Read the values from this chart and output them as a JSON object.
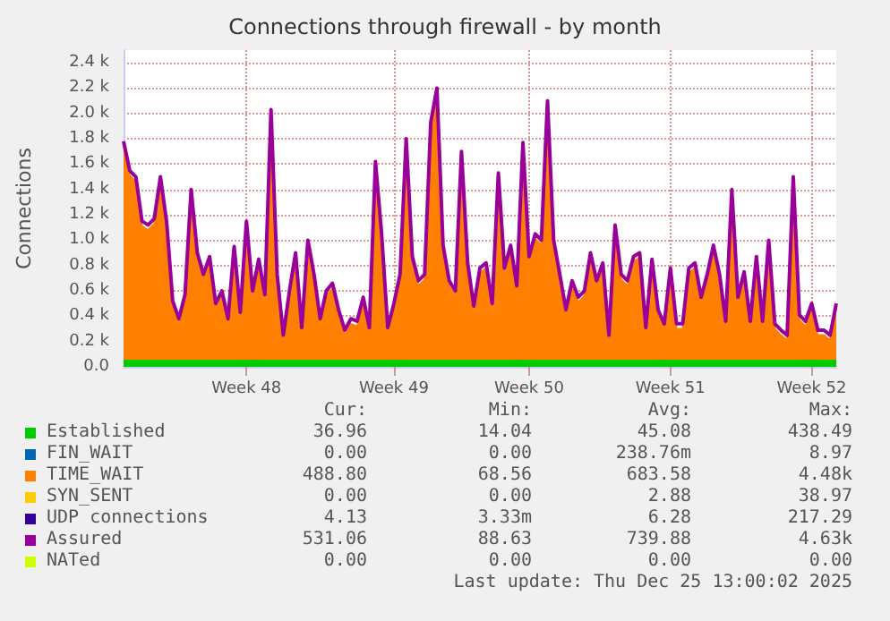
{
  "chart_data": {
    "type": "area",
    "title": "Connections through firewall - by month",
    "ylabel": "Connections",
    "stacked": true,
    "grid": true,
    "legend": "bottom",
    "ylim": [
      0,
      2500
    ],
    "yticks": [
      {
        "value": 0,
        "label": "0.0"
      },
      {
        "value": 200,
        "label": "0.2 k"
      },
      {
        "value": 400,
        "label": "0.4 k"
      },
      {
        "value": 600,
        "label": "0.6 k"
      },
      {
        "value": 800,
        "label": "0.8 k"
      },
      {
        "value": 1000,
        "label": "1.0 k"
      },
      {
        "value": 1200,
        "label": "1.2 k"
      },
      {
        "value": 1400,
        "label": "1.4 k"
      },
      {
        "value": 1600,
        "label": "1.6 k"
      },
      {
        "value": 1800,
        "label": "1.8 k"
      },
      {
        "value": 2000,
        "label": "2.0 k"
      },
      {
        "value": 2200,
        "label": "2.2 k"
      },
      {
        "value": 2400,
        "label": "2.4 k"
      }
    ],
    "categories": [
      null,
      null,
      null,
      null,
      null,
      null,
      null,
      null,
      null,
      null,
      null,
      null,
      null,
      null,
      null,
      null,
      null,
      null,
      null,
      null,
      "Week 48",
      null,
      null,
      null,
      null,
      null,
      null,
      null,
      null,
      null,
      null,
      null,
      null,
      null,
      null,
      null,
      null,
      null,
      null,
      null,
      null,
      null,
      null,
      null,
      "Week 49",
      null,
      null,
      null,
      null,
      null,
      null,
      null,
      null,
      null,
      null,
      null,
      null,
      null,
      null,
      null,
      null,
      null,
      null,
      null,
      null,
      null,
      "Week 50",
      null,
      null,
      null,
      null,
      null,
      null,
      null,
      null,
      null,
      null,
      null,
      null,
      null,
      null,
      null,
      null,
      null,
      null,
      null,
      null,
      null,
      null,
      "Week 51",
      null,
      null,
      null,
      null,
      null,
      null,
      null,
      null,
      null,
      null,
      null,
      null,
      null,
      null,
      null,
      null,
      null,
      null,
      null,
      null,
      null,
      null,
      "Week 52",
      null,
      null,
      null,
      null
    ],
    "series": [
      {
        "name": "Established",
        "type": "area",
        "color": "#00cc00",
        "values": [
          50,
          50,
          50,
          50,
          50,
          50,
          50,
          50,
          50,
          50,
          50,
          50,
          50,
          50,
          50,
          50,
          50,
          50,
          50,
          50,
          50,
          50,
          50,
          50,
          50,
          50,
          50,
          50,
          50,
          50,
          50,
          50,
          50,
          50,
          50,
          50,
          50,
          50,
          50,
          50,
          50,
          50,
          50,
          50,
          50,
          50,
          50,
          50,
          50,
          50,
          50,
          50,
          50,
          50,
          50,
          50,
          50,
          50,
          50,
          50,
          50,
          50,
          50,
          50,
          50,
          50,
          50,
          50,
          50,
          50,
          50,
          50,
          50,
          50,
          50,
          50,
          50,
          50,
          50,
          50,
          50,
          50,
          50,
          50,
          50,
          50,
          50,
          50,
          50,
          50,
          50,
          50,
          50,
          50,
          50,
          50,
          50,
          50,
          50,
          50,
          50,
          50,
          50,
          50,
          50,
          50,
          50,
          50,
          50,
          50,
          50,
          50,
          50,
          50,
          50,
          50,
          50
        ]
      },
      {
        "name": "FIN_WAIT",
        "type": "area",
        "color": "#0066b3",
        "values": [
          null,
          null,
          null,
          null,
          null,
          null,
          null,
          null,
          null,
          null,
          null,
          null,
          null,
          null,
          null,
          null,
          null,
          null,
          null,
          null,
          null,
          null,
          null,
          null,
          null,
          null,
          null,
          null,
          null,
          null,
          null,
          null,
          null,
          null,
          null,
          null,
          null,
          null,
          null,
          null,
          null,
          null,
          null,
          null,
          null,
          null,
          null,
          null,
          null,
          null,
          null,
          null,
          null,
          null,
          null,
          null,
          null,
          null,
          null,
          null,
          null,
          null,
          null,
          null,
          null,
          null,
          null,
          null,
          null,
          null,
          null,
          null,
          null,
          null,
          null,
          null,
          null,
          null,
          null,
          null,
          null,
          null,
          null,
          null,
          null,
          null,
          null,
          null,
          null,
          null,
          null,
          null,
          null,
          null,
          null,
          null,
          null,
          null,
          null,
          null,
          null,
          null,
          null,
          null,
          null,
          null,
          null,
          null,
          null,
          null,
          null,
          null,
          null,
          null,
          null,
          null,
          null
        ]
      },
      {
        "name": "TIME_WAIT",
        "type": "area",
        "color": "#ff8000",
        "values": [
          1690,
          1460,
          1410,
          1060,
          1030,
          1080,
          1410,
          1060,
          430,
          290,
          480,
          1310,
          810,
          640,
          780,
          410,
          510,
          290,
          860,
          340,
          1060,
          510,
          760,
          480,
          1940,
          640,
          160,
          510,
          810,
          220,
          910,
          640,
          290,
          510,
          570,
          360,
          200,
          290,
          270,
          460,
          220,
          1530,
          960,
          220,
          410,
          640,
          1710,
          780,
          590,
          640,
          1840,
          2110,
          870,
          590,
          510,
          1610,
          730,
          390,
          690,
          730,
          410,
          1440,
          690,
          870,
          550,
          1680,
          780,
          960,
          910,
          2010,
          910,
          640,
          360,
          590,
          460,
          510,
          810,
          590,
          730,
          160,
          1030,
          640,
          590,
          780,
          810,
          220,
          760,
          360,
          250,
          690,
          250,
          250,
          690,
          730,
          460,
          640,
          870,
          640,
          270,
          1310,
          460,
          660,
          270,
          780,
          270,
          910,
          250,
          200,
          160,
          1410,
          320,
          270,
          410,
          200,
          200,
          160,
          410
        ]
      },
      {
        "name": "SYN_SENT",
        "type": "area",
        "color": "#ffcc00",
        "values": [
          null,
          null,
          null,
          null,
          null,
          null,
          null,
          null,
          null,
          null,
          null,
          null,
          null,
          null,
          null,
          null,
          null,
          null,
          null,
          null,
          null,
          null,
          null,
          null,
          null,
          null,
          null,
          null,
          null,
          null,
          null,
          null,
          null,
          null,
          null,
          null,
          null,
          null,
          null,
          null,
          null,
          null,
          null,
          null,
          null,
          null,
          null,
          null,
          null,
          null,
          null,
          null,
          null,
          null,
          null,
          null,
          null,
          null,
          null,
          null,
          null,
          null,
          null,
          null,
          null,
          null,
          null,
          null,
          null,
          null,
          null,
          null,
          null,
          null,
          null,
          null,
          null,
          null,
          null,
          null,
          null,
          null,
          null,
          null,
          null,
          null,
          null,
          null,
          null,
          null,
          null,
          null,
          null,
          null,
          null,
          null,
          null,
          null,
          null,
          null,
          null,
          null,
          null,
          null,
          null,
          null,
          null,
          null,
          null,
          null,
          null,
          null,
          null,
          null,
          null,
          null,
          null
        ]
      },
      {
        "name": "UDP connections",
        "type": "area",
        "color": "#330099",
        "values": [
          null,
          null,
          null,
          null,
          null,
          null,
          null,
          null,
          null,
          null,
          null,
          null,
          null,
          null,
          null,
          null,
          null,
          null,
          null,
          null,
          null,
          null,
          null,
          null,
          null,
          null,
          null,
          null,
          null,
          null,
          null,
          null,
          null,
          null,
          null,
          null,
          null,
          null,
          null,
          null,
          null,
          null,
          null,
          null,
          null,
          null,
          null,
          null,
          null,
          null,
          null,
          null,
          null,
          null,
          null,
          null,
          null,
          null,
          null,
          null,
          null,
          null,
          null,
          null,
          null,
          null,
          null,
          null,
          null,
          null,
          null,
          null,
          null,
          null,
          null,
          null,
          null,
          null,
          null,
          null,
          null,
          null,
          null,
          null,
          null,
          null,
          null,
          null,
          null,
          null,
          null,
          null,
          null,
          null,
          null,
          null,
          null,
          null,
          null,
          null,
          null,
          null,
          null,
          null,
          null,
          null,
          null,
          null,
          null,
          null,
          null,
          null,
          null,
          null,
          null,
          null,
          null
        ]
      },
      {
        "name": "Assured",
        "type": "line",
        "color": "#990099",
        "values": [
          1780,
          1550,
          1500,
          1150,
          1120,
          1170,
          1500,
          1150,
          520,
          380,
          570,
          1400,
          900,
          730,
          870,
          500,
          600,
          380,
          950,
          430,
          1150,
          600,
          850,
          570,
          2030,
          730,
          250,
          600,
          900,
          310,
          1000,
          730,
          380,
          600,
          660,
          450,
          290,
          380,
          360,
          550,
          310,
          1620,
          1050,
          310,
          500,
          730,
          1800,
          870,
          680,
          730,
          1930,
          2200,
          960,
          680,
          600,
          1700,
          820,
          480,
          780,
          820,
          500,
          1530,
          780,
          960,
          640,
          1770,
          870,
          1050,
          1000,
          2100,
          1000,
          730,
          450,
          680,
          550,
          600,
          900,
          680,
          820,
          250,
          1120,
          730,
          680,
          870,
          900,
          310,
          850,
          450,
          340,
          780,
          340,
          340,
          780,
          820,
          550,
          730,
          960,
          730,
          360,
          1400,
          550,
          750,
          360,
          870,
          360,
          1000,
          340,
          290,
          250,
          1500,
          410,
          360,
          500,
          290,
          290,
          250,
          500
        ]
      },
      {
        "name": "NATed",
        "type": "line",
        "color": "#ccff00",
        "values": [
          null,
          null,
          null,
          null,
          null,
          null,
          null,
          null,
          null,
          null,
          null,
          null,
          null,
          null,
          null,
          null,
          null,
          null,
          null,
          null,
          null,
          null,
          null,
          null,
          null,
          null,
          null,
          null,
          null,
          null,
          null,
          null,
          null,
          null,
          null,
          null,
          null,
          null,
          null,
          null,
          null,
          null,
          null,
          null,
          null,
          null,
          null,
          null,
          null,
          null,
          null,
          null,
          null,
          null,
          null,
          null,
          null,
          null,
          null,
          null,
          null,
          null,
          null,
          null,
          null,
          null,
          null,
          null,
          null,
          null,
          null,
          null,
          null,
          null,
          null,
          null,
          null,
          null,
          null,
          null,
          null,
          null,
          null,
          null,
          null,
          null,
          null,
          null,
          null,
          null,
          null,
          null,
          null,
          null,
          null,
          null,
          null,
          null,
          null,
          null,
          null,
          null,
          null,
          null,
          null,
          null,
          null,
          null,
          null,
          null,
          null,
          null,
          null,
          null,
          null,
          null,
          null
        ]
      }
    ],
    "annotations": [
      "Cur:",
      "Min:",
      "Avg:",
      "Max:",
      "36.96",
      "14.04",
      "45.08",
      "438.49",
      "0.00",
      "0.00",
      "238.76m",
      "8.97",
      "488.80",
      "68.56",
      "683.58",
      "4.48k",
      "0.00",
      "0.00",
      "2.88",
      "38.97",
      "4.13",
      "3.33m",
      "6.28",
      "217.29",
      "531.06",
      "88.63",
      "739.88",
      "4.63k",
      "0.00",
      "0.00",
      "0.00",
      "0.00",
      "Last update: Thu Dec 25 13:00:02 2025"
    ]
  }
}
